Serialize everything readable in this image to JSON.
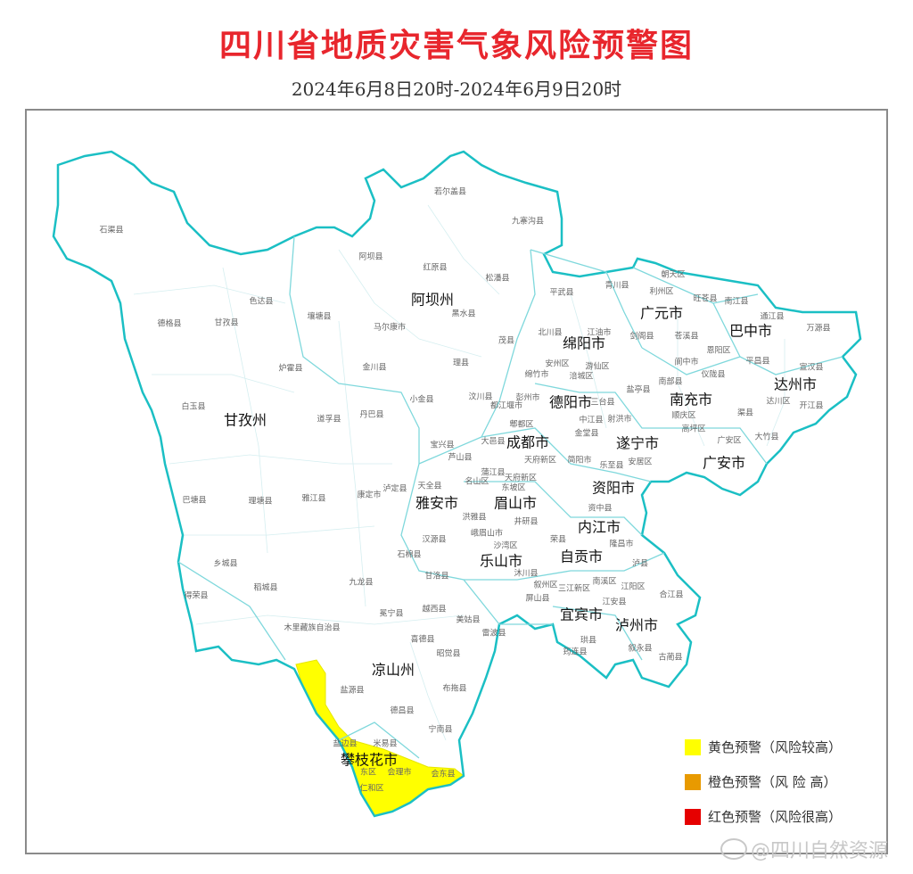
{
  "title": "四川省地质灾害气象风险预警图",
  "subtitle": "2024年6月8日20时-2024年6月9日20时",
  "colors": {
    "title": "#e8262d",
    "border": "#1bbfc4",
    "inner_border": "#9fe0e4",
    "yellow": "#ffff00",
    "orange": "#e89a00",
    "red": "#e60000"
  },
  "warning_area": {
    "level": "yellow",
    "regions": [
      "攀枝花市",
      "凉山州西南部(盐源县)",
      "会东县"
    ]
  },
  "prefectures": [
    "阿坝州",
    "甘孜州",
    "绵阳市",
    "广元市",
    "巴中市",
    "德阳市",
    "南充市",
    "达州市",
    "成都市",
    "遂宁市",
    "广安市",
    "雅安市",
    "眉山市",
    "资阳市",
    "内江市",
    "乐山市",
    "自贡市",
    "宜宾市",
    "泸州市",
    "凉山州",
    "攀枝花市"
  ],
  "counties": [
    "若尔盖县",
    "九寨沟县",
    "石渠县",
    "阿坝县",
    "红原县",
    "松潘县",
    "平武县",
    "青川县",
    "朝天区",
    "利州区",
    "旺苍县",
    "南江县",
    "色达县",
    "壤塘县",
    "马尔康市",
    "黑水县",
    "德格县",
    "甘孜县",
    "通江县",
    "万源县",
    "北川县",
    "江油市",
    "剑阁县",
    "苍溪县",
    "茂县",
    "恩阳区",
    "炉霍县",
    "金川县",
    "理县",
    "安州区",
    "游仙区",
    "阆中市",
    "仪陇县",
    "平昌县",
    "宣汉县",
    "绵竹市",
    "涪城区",
    "南部县",
    "汶川县",
    "彭州市",
    "三台县",
    "盐亭县",
    "达川区",
    "开江县",
    "白玉县",
    "小金县",
    "都江堰市",
    "中江县",
    "射洪市",
    "顺庆区",
    "渠县",
    "道孚县",
    "丹巴县",
    "郫都区",
    "金堂县",
    "高坪区",
    "大竹县",
    "宝兴县",
    "大邑县",
    "广安区",
    "芦山县",
    "天府新区",
    "简阳市",
    "乐至县",
    "安居区",
    "蒲江县",
    "天府新区",
    "名山区",
    "东坡区",
    "天全县",
    "泸定县",
    "康定市",
    "巴塘县",
    "理塘县",
    "雅江县",
    "资中县",
    "洪雅县",
    "井研县",
    "峨眉山市",
    "荣县",
    "隆昌市",
    "汉源县",
    "沙湾区",
    "石棉县",
    "泸县",
    "乡城县",
    "稻城县",
    "九龙县",
    "甘洛县",
    "沐川县",
    "叙州区",
    "南溪区",
    "三江新区",
    "江阳区",
    "合江县",
    "得荣县",
    "冕宁县",
    "越西县",
    "屏山县",
    "江安县",
    "美姑县",
    "木里藏族自治县",
    "雷波县",
    "珙县",
    "叙永县",
    "喜德县",
    "昭觉县",
    "筠连县",
    "古蔺县",
    "盐源县",
    "布拖县",
    "德昌县",
    "宁南县",
    "盐边县",
    "米易县",
    "东区",
    "会理市",
    "会东县",
    "仁和区"
  ],
  "legend": [
    {
      "label": "黄色预警（风险较高）",
      "color": "#ffff00"
    },
    {
      "label": "橙色预警（风 险 高）",
      "color": "#e89a00"
    },
    {
      "label": "红色预警（风险很高）",
      "color": "#e60000"
    }
  ],
  "watermark": "@四川自然资源"
}
